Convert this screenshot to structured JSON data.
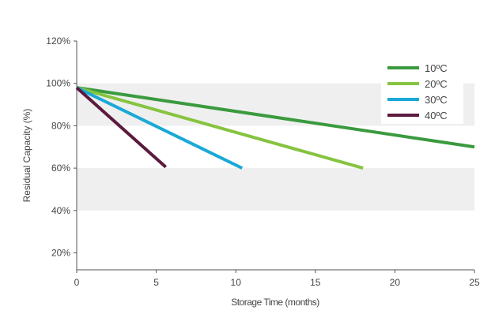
{
  "chart_data": {
    "type": "line",
    "title": "",
    "xlabel": "Storage Time (months)",
    "ylabel": "Residual Capacity  (%)",
    "xlim": [
      0,
      25
    ],
    "ylim": [
      12,
      120
    ],
    "x_ticks": [
      0,
      5,
      10,
      15,
      20,
      25
    ],
    "y_ticks": [
      20,
      40,
      60,
      80,
      100,
      120
    ],
    "y_tick_labels": [
      "20%",
      "40%",
      "60%",
      "80%",
      "100%",
      "120%"
    ],
    "bands": [
      [
        40,
        60
      ],
      [
        80,
        100
      ]
    ],
    "legend_position": "top-right",
    "series": [
      {
        "name": "10ºC",
        "color": "#3a9a3e",
        "x": [
          0,
          25
        ],
        "y": [
          98,
          70
        ]
      },
      {
        "name": "20ºC",
        "color": "#86c440",
        "x": [
          0,
          18
        ],
        "y": [
          98,
          60
        ]
      },
      {
        "name": "30ºC",
        "color": "#1aa9d6",
        "x": [
          0,
          10.4
        ],
        "y": [
          98,
          60
        ]
      },
      {
        "name": "40ºC",
        "color": "#5b1a3e",
        "x": [
          0,
          5.6
        ],
        "y": [
          98,
          60.5
        ]
      }
    ]
  }
}
